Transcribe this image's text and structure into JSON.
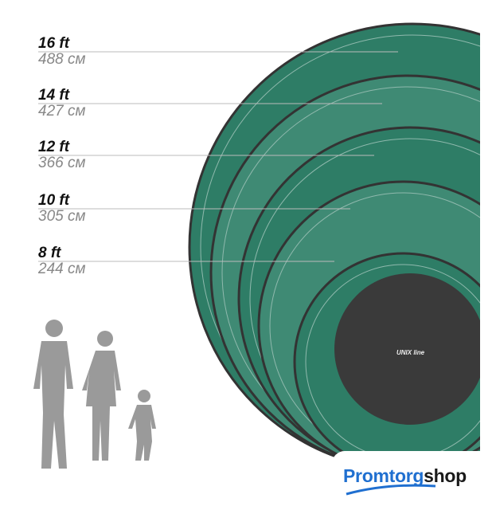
{
  "sizes": [
    {
      "ft": "16 ft",
      "cm": "488 см"
    },
    {
      "ft": "14 ft",
      "cm": "427 см"
    },
    {
      "ft": "12 ft",
      "cm": "366 см"
    },
    {
      "ft": "10 ft",
      "cm": "305 см"
    },
    {
      "ft": "8 ft",
      "cm": "244 см"
    }
  ],
  "mat_brand": "UNIX line",
  "logo": {
    "part1": "Promtorg",
    "part2": "shop"
  },
  "colors": {
    "net_green": "#2e7d66",
    "mat": "#3a3a3a",
    "logo_blue": "#1f6fd0",
    "silhouette": "#9a9a9a"
  }
}
